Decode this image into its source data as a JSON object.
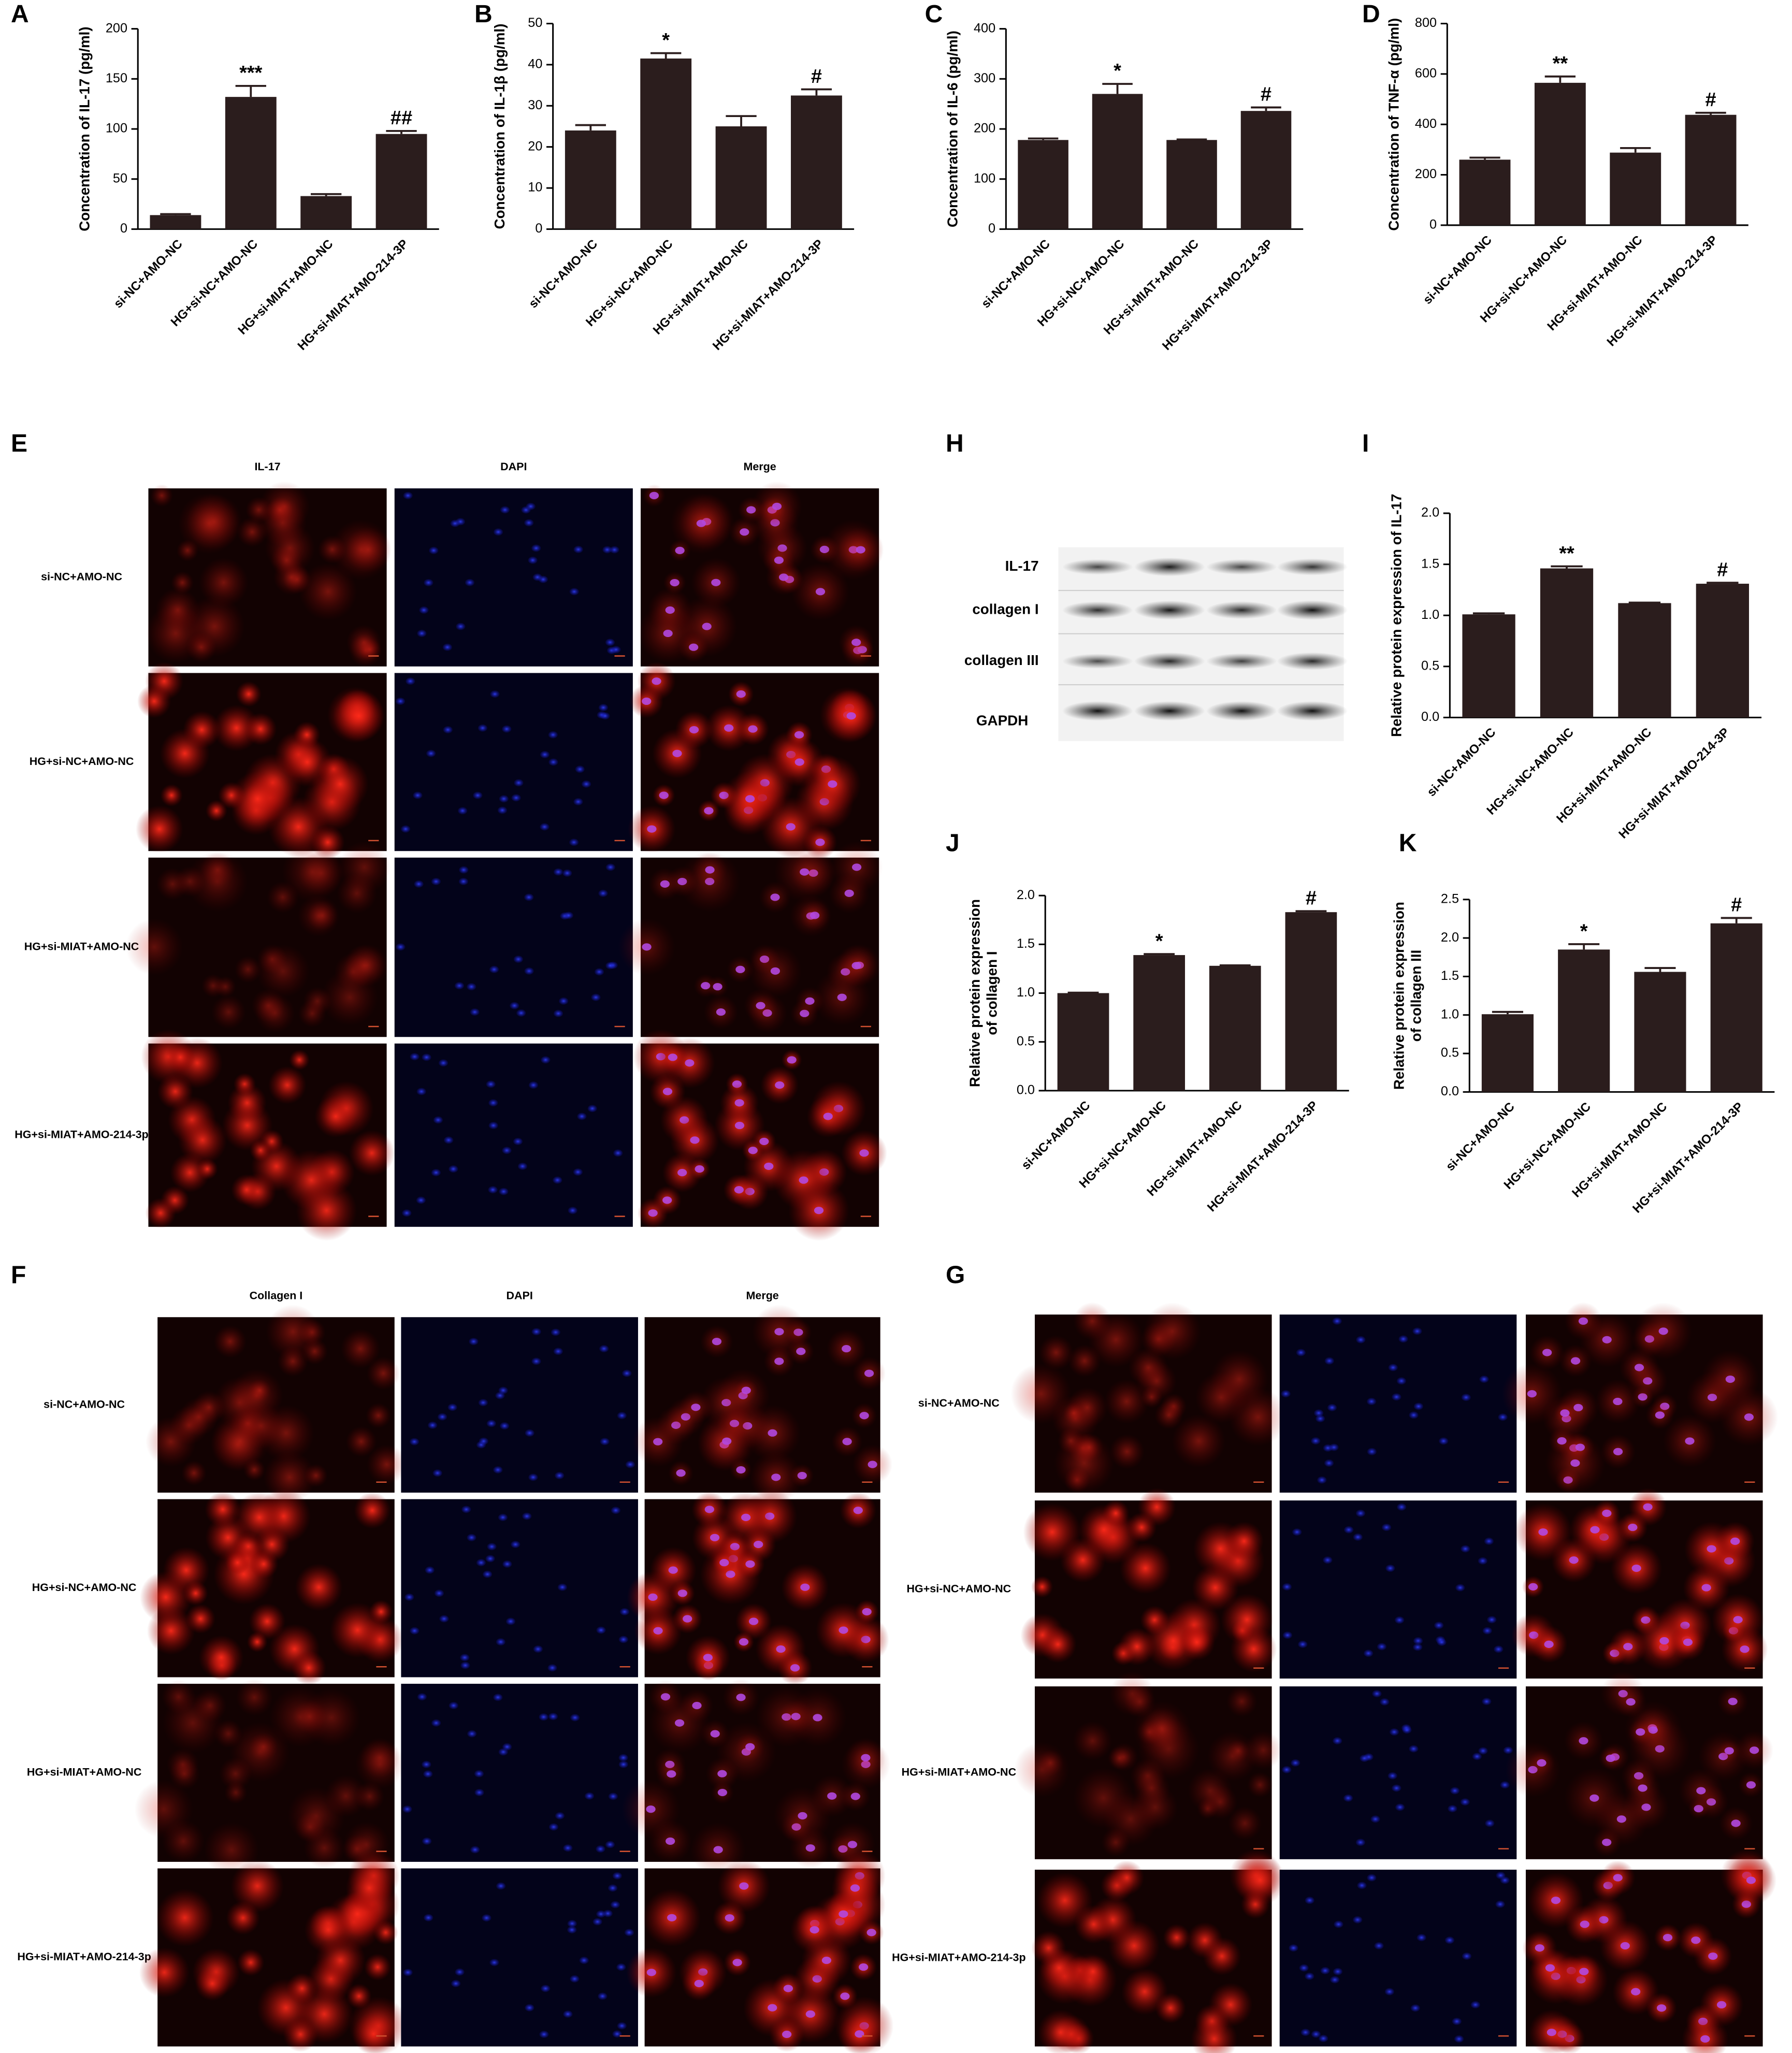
{
  "chart_data": [
    {
      "type": "bar",
      "panel": "A",
      "ylabel": [
        "Concentration of IL-17 (pg/ml)"
      ],
      "categories": [
        "si-NC+AMO-NC",
        "HG+si-NC+AMO-NC",
        "HG+si-MIAT+AMO-NC",
        "HG+si-MIAT+AMO-214-3P"
      ],
      "values": [
        14,
        132,
        33,
        95
      ],
      "errors": [
        1,
        11,
        2,
        3
      ],
      "significance": [
        null,
        "***",
        null,
        "##"
      ],
      "ylim": [
        0,
        200
      ],
      "yticks": [
        0,
        50,
        100,
        150,
        200
      ],
      "color": "#2b1d1d"
    },
    {
      "type": "bar",
      "panel": "B",
      "ylabel": [
        "Concentration of IL-1β (pg/ml)"
      ],
      "categories": [
        "si-NC+AMO-NC",
        "HG+si-NC+AMO-NC",
        "HG+si-MIAT+AMO-NC",
        "HG+si-MIAT+AMO-214-3P"
      ],
      "values": [
        24,
        41.5,
        25,
        32.5
      ],
      "errors": [
        1.3,
        1.3,
        2.5,
        1.5
      ],
      "significance": [
        null,
        "*",
        null,
        "#"
      ],
      "ylim": [
        0,
        50
      ],
      "yticks": [
        0,
        10,
        20,
        30,
        40,
        50
      ],
      "color": "#2b1d1d"
    },
    {
      "type": "bar",
      "panel": "C",
      "ylabel": [
        "Concentration of IL-6 (pg/ml)"
      ],
      "categories": [
        "si-NC+AMO-NC",
        "HG+si-NC+AMO-NC",
        "HG+si-MIAT+AMO-NC",
        "HG+si-MIAT+AMO-214-3P"
      ],
      "values": [
        178,
        270,
        178,
        236
      ],
      "errors": [
        3,
        20,
        1,
        7
      ],
      "significance": [
        null,
        "*",
        null,
        "#"
      ],
      "ylim": [
        0,
        400
      ],
      "yticks": [
        0,
        100,
        200,
        300,
        400
      ],
      "color": "#2b1d1d"
    },
    {
      "type": "bar",
      "panel": "D",
      "ylabel": [
        "Concentration of TNF-α (pg/ml)"
      ],
      "categories": [
        "si-NC+AMO-NC",
        "HG+si-NC+AMO-NC",
        "HG+si-MIAT+AMO-NC",
        "HG+si-MIAT+AMO-214-3P"
      ],
      "values": [
        260,
        565,
        288,
        438
      ],
      "errors": [
        8,
        25,
        18,
        8
      ],
      "significance": [
        null,
        "**",
        null,
        "#"
      ],
      "ylim": [
        0,
        800
      ],
      "yticks": [
        0,
        200,
        400,
        600,
        800
      ],
      "color": "#2b1d1d"
    },
    {
      "type": "bar",
      "panel": "I",
      "ylabel": [
        "Relative protein expression of IL-17"
      ],
      "categories": [
        "si-NC+AMO-NC",
        "HG+si-NC+AMO-NC",
        "HG+si-MIAT+AMO-NC",
        "HG+si-MIAT+AMO-214-3P"
      ],
      "values": [
        1.01,
        1.46,
        1.12,
        1.31
      ],
      "errors": [
        0.01,
        0.02,
        0.005,
        0.01
      ],
      "significance": [
        null,
        "**",
        null,
        "#"
      ],
      "ylim": [
        0,
        2
      ],
      "yticks": [
        {
          "value": 0,
          "label": "0.0"
        },
        0.5,
        {
          "value": 1,
          "label": "1.0"
        },
        1.5,
        {
          "value": 2,
          "label": "2.0"
        }
      ],
      "color": "#2b1d1d"
    },
    {
      "type": "bar",
      "panel": "J",
      "ylabel": [
        "Relative protein expression",
        "of collagen I"
      ],
      "categories": [
        "si-NC+AMO-NC",
        "HG+si-NC+AMO-NC",
        "HG+si-MIAT+AMO-NC",
        "HG+si-MIAT+AMO-214-3P"
      ],
      "values": [
        1.0,
        1.39,
        1.28,
        1.83
      ],
      "errors": [
        0.005,
        0.01,
        0.005,
        0.01
      ],
      "significance": [
        null,
        "*",
        null,
        "#"
      ],
      "ylim": [
        0,
        2
      ],
      "yticks": [
        {
          "value": 0,
          "label": "0.0"
        },
        0.5,
        {
          "value": 1,
          "label": "1.0"
        },
        1.5,
        {
          "value": 2,
          "label": "2.0"
        }
      ],
      "color": "#2b1d1d"
    },
    {
      "type": "bar",
      "panel": "K",
      "ylabel": [
        "Relative protein expression",
        "of collagen III"
      ],
      "categories": [
        "si-NC+AMO-NC",
        "HG+si-NC+AMO-NC",
        "HG+si-MIAT+AMO-NC",
        "HG+si-MIAT+AMO-214-3P"
      ],
      "values": [
        1.01,
        1.85,
        1.56,
        2.19
      ],
      "errors": [
        0.03,
        0.07,
        0.05,
        0.07
      ],
      "significance": [
        null,
        "*",
        null,
        "#"
      ],
      "ylim": [
        0,
        2.5
      ],
      "yticks": [
        {
          "value": 0,
          "label": "0.0"
        },
        0.5,
        {
          "value": 1,
          "label": "1.0"
        },
        1.5,
        {
          "value": 2,
          "label": "2.0"
        },
        2.5
      ],
      "color": "#2b1d1d"
    }
  ],
  "panels": [
    {
      "label": "E",
      "columns": [
        "IL-17",
        "DAPI",
        "Merge"
      ],
      "rows": [
        "si-NC+AMO-NC",
        "HG+si-NC+AMO-NC",
        "HG+si-MIAT+AMO-NC",
        "HG+si-MIAT+AMO-214-3p"
      ]
    },
    {
      "label": "F",
      "columns": [
        "Collagen I",
        "DAPI",
        "Merge"
      ],
      "rows": [
        "si-NC+AMO-NC",
        "HG+si-NC+AMO-NC",
        "HG+si-MIAT+AMO-NC",
        "HG+si-MIAT+AMO-214-3p"
      ]
    },
    {
      "label": "G",
      "rows": [
        "si-NC+AMO-NC",
        "HG+si-NC+AMO-NC",
        "HG+si-MIAT+AMO-NC",
        "HG+si-MIAT+AMO-214-3p"
      ]
    }
  ],
  "blot": {
    "label": "H",
    "bands": [
      "IL-17",
      "collagen I",
      "collagen III",
      "GAPDH"
    ]
  }
}
